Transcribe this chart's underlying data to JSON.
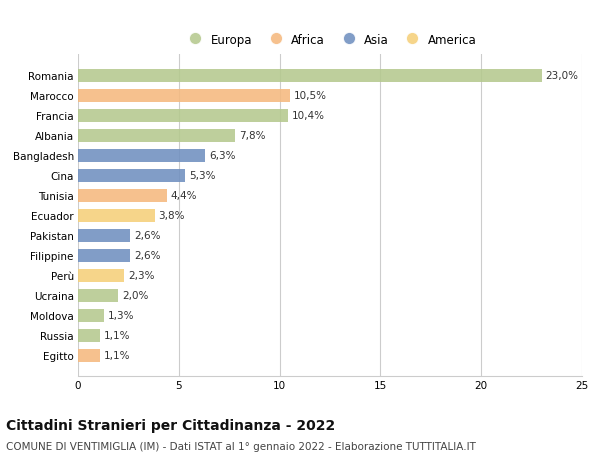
{
  "countries": [
    "Romania",
    "Marocco",
    "Francia",
    "Albania",
    "Bangladesh",
    "Cina",
    "Tunisia",
    "Ecuador",
    "Pakistan",
    "Filippine",
    "Perù",
    "Ucraina",
    "Moldova",
    "Russia",
    "Egitto"
  ],
  "values": [
    23.0,
    10.5,
    10.4,
    7.8,
    6.3,
    5.3,
    4.4,
    3.8,
    2.6,
    2.6,
    2.3,
    2.0,
    1.3,
    1.1,
    1.1
  ],
  "labels": [
    "23,0%",
    "10,5%",
    "10,4%",
    "7,8%",
    "6,3%",
    "5,3%",
    "4,4%",
    "3,8%",
    "2,6%",
    "2,6%",
    "2,3%",
    "2,0%",
    "1,3%",
    "1,1%",
    "1,1%"
  ],
  "continents": [
    "Europa",
    "Africa",
    "Europa",
    "Europa",
    "Asia",
    "Asia",
    "Africa",
    "America",
    "Asia",
    "Asia",
    "America",
    "Europa",
    "Europa",
    "Europa",
    "Africa"
  ],
  "continent_colors": {
    "Europa": "#b5c98e",
    "Africa": "#f5b97f",
    "Asia": "#7090c0",
    "America": "#f5d07a"
  },
  "legend_order": [
    "Europa",
    "Africa",
    "Asia",
    "America"
  ],
  "title": "Cittadini Stranieri per Cittadinanza - 2022",
  "subtitle": "COMUNE DI VENTIMIGLIA (IM) - Dati ISTAT al 1° gennaio 2022 - Elaborazione TUTTITALIA.IT",
  "xlim": [
    0,
    25
  ],
  "xticks": [
    0,
    5,
    10,
    15,
    20,
    25
  ],
  "background_color": "#ffffff",
  "grid_color": "#cccccc",
  "bar_height": 0.65,
  "title_fontsize": 10,
  "subtitle_fontsize": 7.5,
  "label_fontsize": 7.5,
  "tick_fontsize": 7.5,
  "legend_fontsize": 8.5
}
